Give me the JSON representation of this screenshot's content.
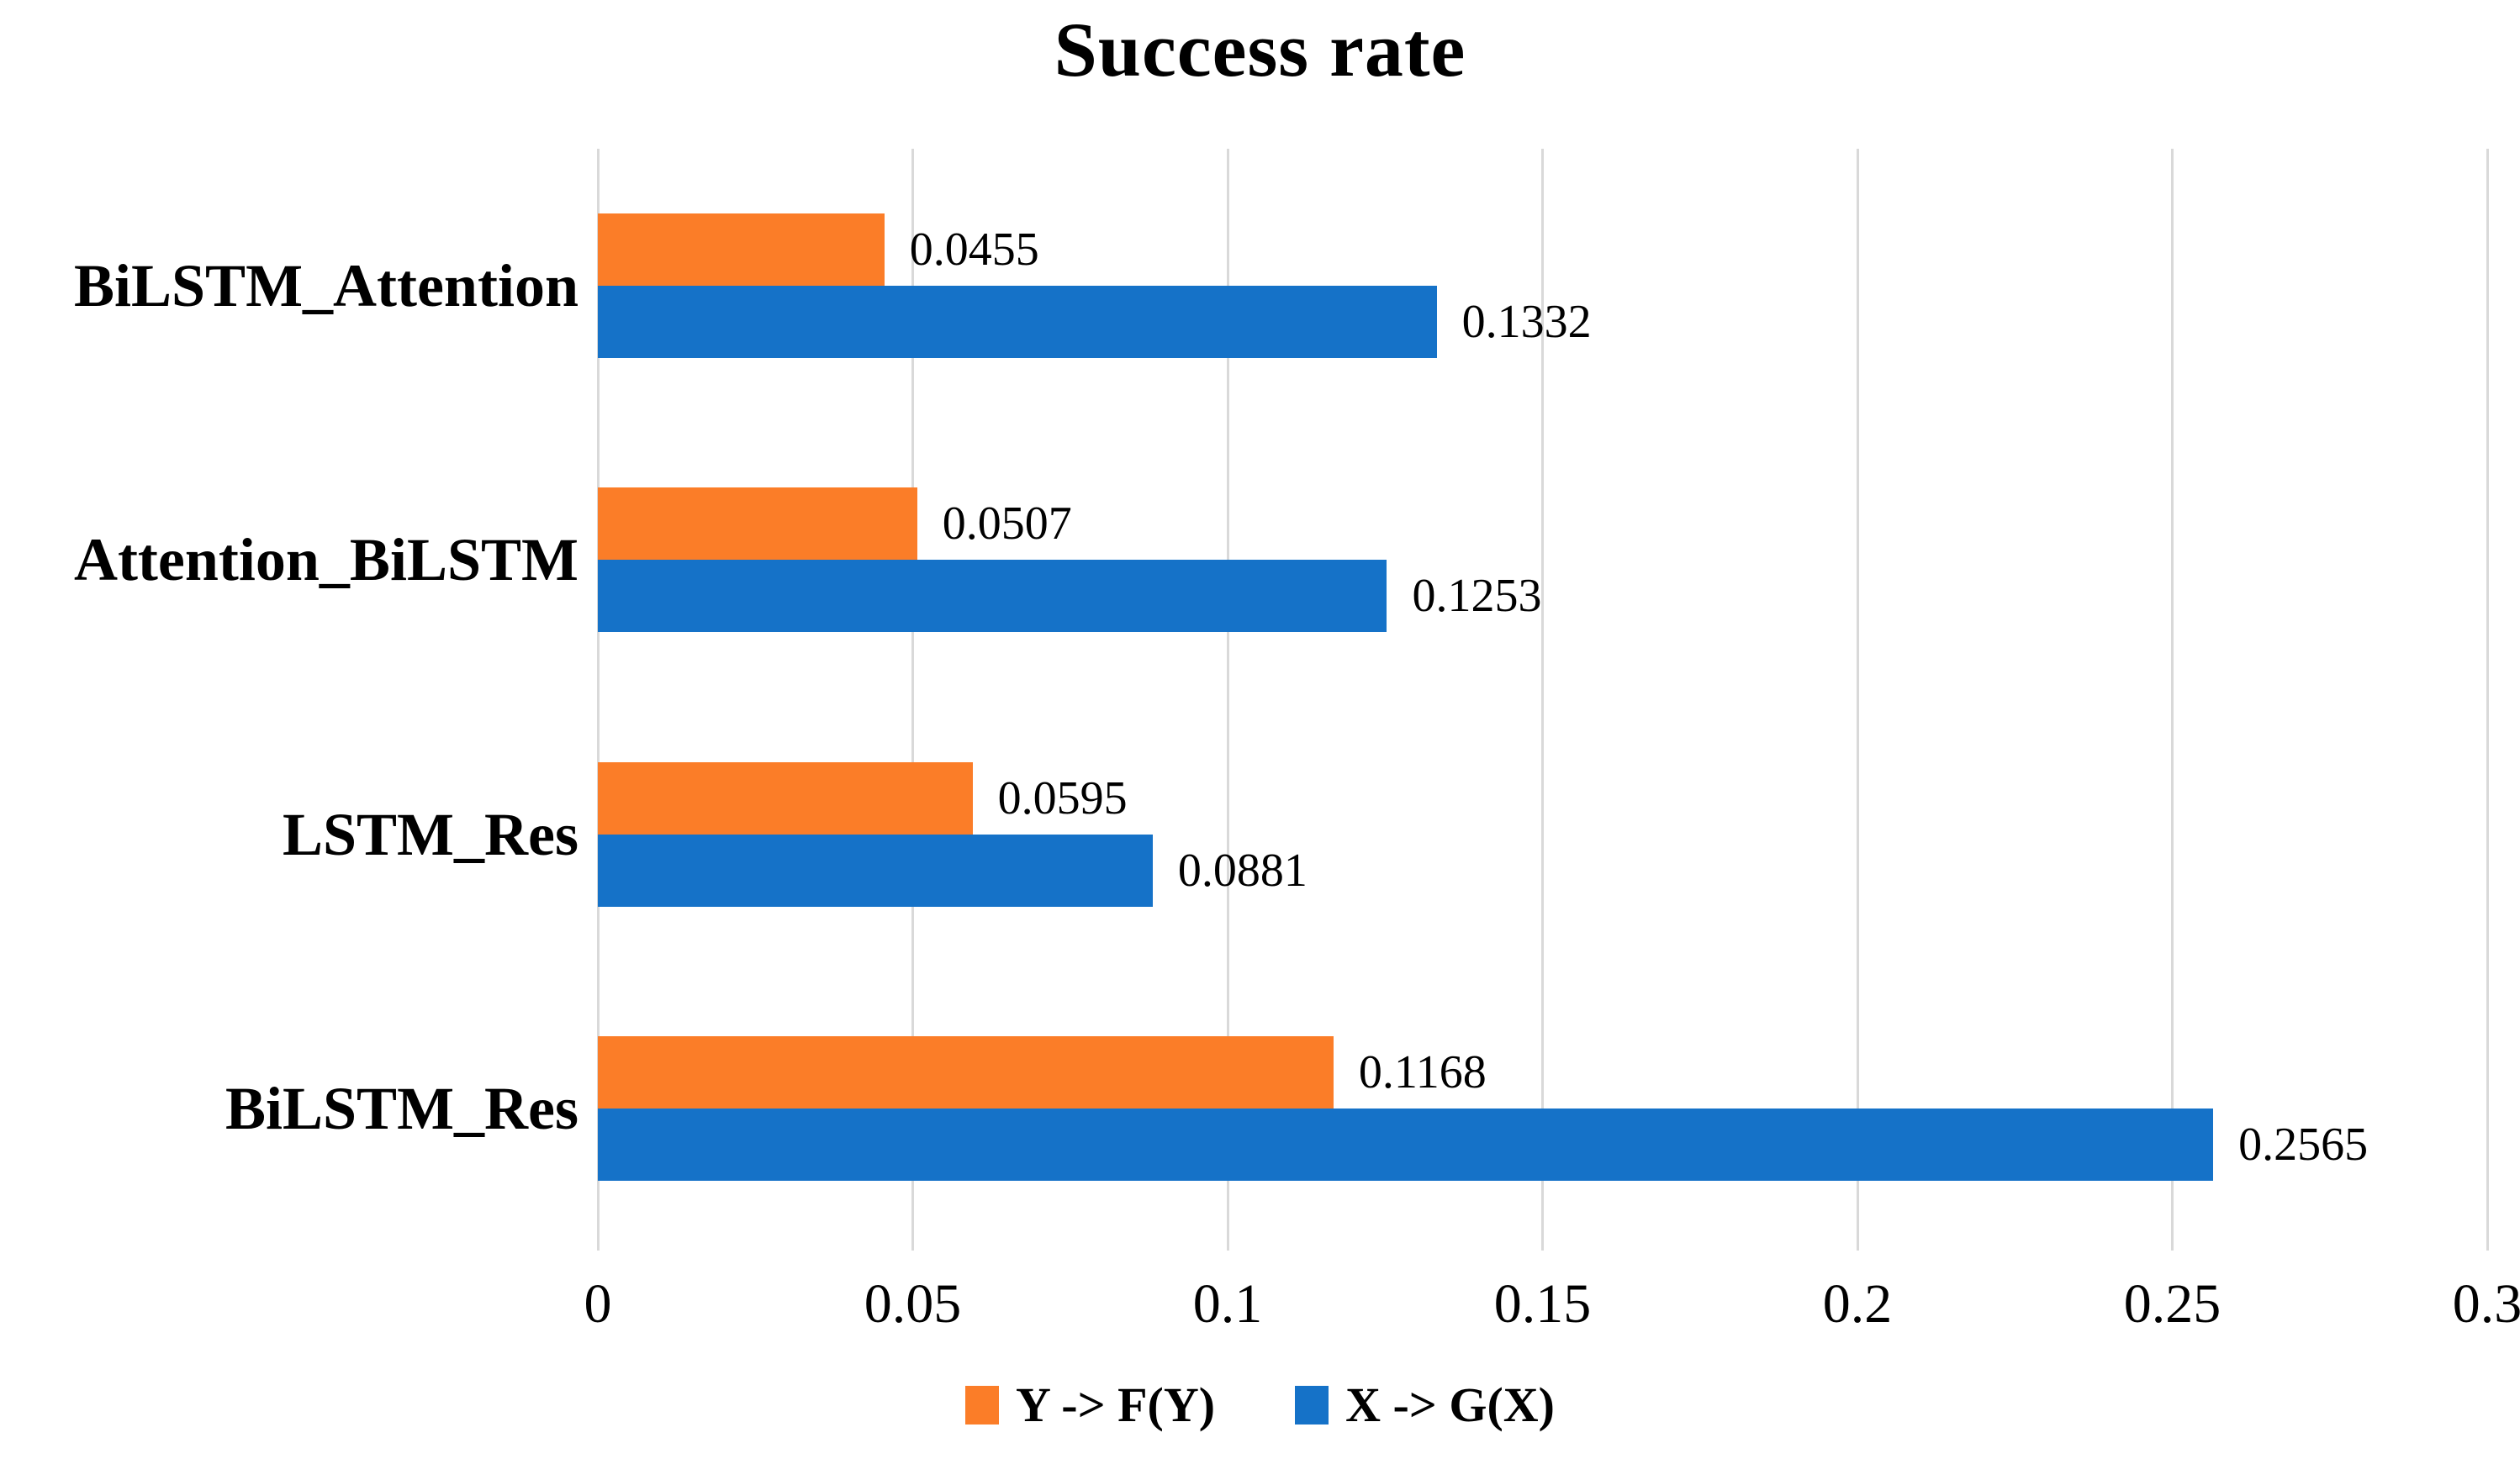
{
  "chart_data": {
    "type": "bar",
    "orientation": "horizontal",
    "title": "Success rate",
    "categories": [
      "BiLSTM_Attention",
      "Attention_BiLSTM",
      "LSTM_Res",
      "BiLSTM_Res"
    ],
    "series": [
      {
        "name": "Y -> F(Y)",
        "color": "#FB7D28",
        "values": [
          0.0455,
          0.0507,
          0.0595,
          0.1168
        ],
        "value_labels": [
          "0.0455",
          "0.0507",
          "0.0595",
          "0.1168"
        ]
      },
      {
        "name": "X -> G(X)",
        "color": "#1572C8",
        "values": [
          0.1332,
          0.1253,
          0.0881,
          0.2565
        ],
        "value_labels": [
          "0.1332",
          "0.1253",
          "0.0881",
          "0.2565"
        ]
      }
    ],
    "xlim": [
      0,
      0.3
    ],
    "x_tick_labels": [
      "0",
      "0.05",
      "0.1",
      "0.15",
      "0.2",
      "0.25",
      "0.3"
    ],
    "grid": true,
    "gridline_color": "#D9D9D9",
    "legend_position": "bottom",
    "text_color": "#000000",
    "background_color": "#FFFFFF"
  }
}
